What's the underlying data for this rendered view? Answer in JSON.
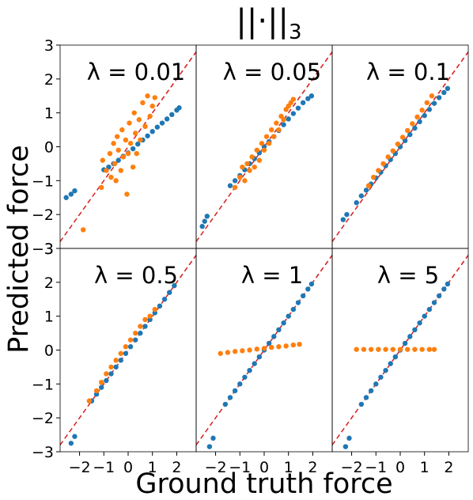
{
  "figure": {
    "title_main": "||·||",
    "title_sub": "3",
    "ylabel": "Predicted force",
    "xlabel": "Ground truth force",
    "y_ticks": [
      "3",
      "2",
      "1",
      "0",
      "−1",
      "−2",
      "−3"
    ],
    "x_ticks": [
      "−2",
      "−1",
      "0",
      "1",
      "2"
    ]
  },
  "colors": {
    "blue": "#1f77b4",
    "orange": "#ff7f0e",
    "diagonal": "#d62728"
  },
  "chart_data": [
    {
      "type": "scatter",
      "panel_label": "λ = 0.01",
      "xlim": [
        -2.8,
        2.8
      ],
      "ylim": [
        -3,
        3
      ],
      "blue_pattern": "identity",
      "orange_pattern": "wide_scatter",
      "series": [
        {
          "values": [
            [
              -2.55,
              -1.5
            ],
            [
              -2.35,
              -1.4
            ],
            [
              -2.2,
              -1.3
            ],
            [
              -1.0,
              -0.68
            ],
            [
              -0.8,
              -0.6
            ],
            [
              -0.6,
              -0.5
            ],
            [
              -0.4,
              -0.4
            ],
            [
              -0.2,
              -0.28
            ],
            [
              0.0,
              -0.18
            ],
            [
              0.2,
              -0.06
            ],
            [
              0.4,
              0.08
            ],
            [
              0.6,
              0.2
            ],
            [
              0.8,
              0.32
            ],
            [
              1.0,
              0.45
            ],
            [
              1.2,
              0.58
            ],
            [
              1.4,
              0.7
            ],
            [
              1.6,
              0.82
            ],
            [
              1.8,
              0.95
            ],
            [
              2.0,
              1.08
            ],
            [
              2.1,
              1.15
            ]
          ]
        },
        {
          "values": [
            [
              -1.1,
              -1.2
            ],
            [
              -1.05,
              -0.4
            ],
            [
              -0.9,
              -0.7
            ],
            [
              -0.75,
              -0.2
            ],
            [
              -0.7,
              -0.9
            ],
            [
              -0.6,
              0.1
            ],
            [
              -0.55,
              -0.5
            ],
            [
              -0.5,
              -1.0
            ],
            [
              -0.45,
              0.3
            ],
            [
              -0.4,
              -0.1
            ],
            [
              -0.3,
              -0.7
            ],
            [
              -0.25,
              0.5
            ],
            [
              -0.2,
              -0.3
            ],
            [
              -0.1,
              0.2
            ],
            [
              -0.05,
              -1.4
            ],
            [
              0.0,
              -0.2
            ],
            [
              0.05,
              0.7
            ],
            [
              0.1,
              0.1
            ],
            [
              0.2,
              -0.6
            ],
            [
              0.25,
              1.0
            ],
            [
              0.3,
              0.4
            ],
            [
              0.35,
              -0.2
            ],
            [
              0.45,
              0.8
            ],
            [
              0.5,
              0.2
            ],
            [
              0.6,
              1.3
            ],
            [
              0.7,
              0.6
            ],
            [
              0.8,
              1.5
            ],
            [
              0.9,
              0.9
            ],
            [
              1.0,
              1.2
            ],
            [
              1.1,
              1.45
            ],
            [
              -1.85,
              -2.45
            ]
          ]
        }
      ]
    },
    {
      "type": "scatter",
      "panel_label": "λ = 0.05",
      "xlim": [
        -2.8,
        2.8
      ],
      "ylim": [
        -3,
        3
      ],
      "blue_pattern": "identity",
      "orange_pattern": "moderate_scatter",
      "series": [
        {
          "values": [
            [
              -2.55,
              -2.35
            ],
            [
              -2.45,
              -2.2
            ],
            [
              -2.35,
              -2.05
            ],
            [
              -1.4,
              -1.15
            ],
            [
              -1.2,
              -1.0
            ],
            [
              -1.0,
              -0.85
            ],
            [
              -0.8,
              -0.68
            ],
            [
              -0.6,
              -0.5
            ],
            [
              -0.4,
              -0.35
            ],
            [
              -0.2,
              -0.18
            ],
            [
              0.0,
              0.0
            ],
            [
              0.2,
              0.15
            ],
            [
              0.4,
              0.3
            ],
            [
              0.6,
              0.48
            ],
            [
              0.8,
              0.65
            ],
            [
              1.0,
              0.82
            ],
            [
              1.2,
              0.98
            ],
            [
              1.4,
              1.14
            ],
            [
              1.6,
              1.3
            ],
            [
              1.8,
              1.42
            ],
            [
              1.95,
              1.5
            ]
          ]
        },
        {
          "values": [
            [
              -1.2,
              -1.2
            ],
            [
              -1.0,
              -0.9
            ],
            [
              -0.9,
              -0.6
            ],
            [
              -0.8,
              -1.0
            ],
            [
              -0.7,
              -0.5
            ],
            [
              -0.6,
              -0.7
            ],
            [
              -0.5,
              -0.3
            ],
            [
              -0.4,
              -0.6
            ],
            [
              -0.3,
              -0.1
            ],
            [
              -0.2,
              -0.4
            ],
            [
              -0.1,
              0.1
            ],
            [
              0.0,
              -0.1
            ],
            [
              0.1,
              0.3
            ],
            [
              0.2,
              0.1
            ],
            [
              0.3,
              0.5
            ],
            [
              0.4,
              0.3
            ],
            [
              0.5,
              0.7
            ],
            [
              0.6,
              0.5
            ],
            [
              0.7,
              0.9
            ],
            [
              0.8,
              0.8
            ],
            [
              0.9,
              1.1
            ],
            [
              1.0,
              1.2
            ],
            [
              1.1,
              1.3
            ],
            [
              1.2,
              1.4
            ]
          ]
        }
      ]
    },
    {
      "type": "scatter",
      "panel_label": "λ = 0.1",
      "xlim": [
        -2.8,
        2.8
      ],
      "ylim": [
        -3,
        3
      ],
      "blue_pattern": "identity",
      "orange_pattern": "tight",
      "series": [
        {
          "values": [
            [
              -2.35,
              -2.15
            ],
            [
              -2.2,
              -2.0
            ],
            [
              -1.8,
              -1.65
            ],
            [
              -1.6,
              -1.45
            ],
            [
              -1.4,
              -1.28
            ],
            [
              -1.2,
              -1.1
            ],
            [
              -1.0,
              -0.92
            ],
            [
              -0.8,
              -0.75
            ],
            [
              -0.6,
              -0.56
            ],
            [
              -0.4,
              -0.38
            ],
            [
              -0.2,
              -0.2
            ],
            [
              0.0,
              0.0
            ],
            [
              0.2,
              0.18
            ],
            [
              0.4,
              0.36
            ],
            [
              0.6,
              0.55
            ],
            [
              0.8,
              0.74
            ],
            [
              1.0,
              0.92
            ],
            [
              1.2,
              1.1
            ],
            [
              1.4,
              1.28
            ],
            [
              1.6,
              1.45
            ],
            [
              1.8,
              1.6
            ],
            [
              1.95,
              1.72
            ]
          ]
        },
        {
          "values": [
            [
              -1.3,
              -1.15
            ],
            [
              -1.1,
              -0.9
            ],
            [
              -0.9,
              -0.7
            ],
            [
              -0.7,
              -0.5
            ],
            [
              -0.5,
              -0.3
            ],
            [
              -0.3,
              -0.12
            ],
            [
              -0.1,
              0.08
            ],
            [
              0.1,
              0.28
            ],
            [
              0.3,
              0.48
            ],
            [
              0.5,
              0.68
            ],
            [
              0.7,
              0.88
            ],
            [
              0.9,
              1.08
            ],
            [
              1.1,
              1.3
            ],
            [
              1.3,
              1.5
            ]
          ]
        }
      ]
    },
    {
      "type": "scatter",
      "panel_label": "λ = 0.5",
      "xlim": [
        -2.8,
        2.8
      ],
      "ylim": [
        -3,
        3
      ],
      "blue_pattern": "identity",
      "orange_pattern": "tight",
      "series": [
        {
          "values": [
            [
              -2.35,
              -2.75
            ],
            [
              -2.2,
              -2.55
            ],
            [
              -1.5,
              -1.5
            ],
            [
              -1.3,
              -1.3
            ],
            [
              -1.1,
              -1.1
            ],
            [
              -0.9,
              -0.9
            ],
            [
              -0.7,
              -0.7
            ],
            [
              -0.5,
              -0.5
            ],
            [
              -0.3,
              -0.3
            ],
            [
              -0.1,
              -0.1
            ],
            [
              0.1,
              0.1
            ],
            [
              0.3,
              0.3
            ],
            [
              0.5,
              0.5
            ],
            [
              0.7,
              0.7
            ],
            [
              0.9,
              0.9
            ],
            [
              1.1,
              1.1
            ],
            [
              1.3,
              1.3
            ],
            [
              1.5,
              1.5
            ],
            [
              1.7,
              1.7
            ],
            [
              1.9,
              1.9
            ]
          ]
        },
        {
          "values": [
            [
              -1.6,
              -1.5
            ],
            [
              -1.3,
              -1.2
            ],
            [
              -1.1,
              -0.95
            ],
            [
              -0.9,
              -0.7
            ],
            [
              -0.7,
              -0.5
            ],
            [
              -0.5,
              -0.3
            ],
            [
              -0.3,
              -0.1
            ],
            [
              -0.1,
              0.1
            ],
            [
              0.1,
              0.3
            ],
            [
              0.3,
              0.5
            ],
            [
              0.5,
              0.7
            ],
            [
              0.7,
              0.9
            ],
            [
              0.9,
              1.0
            ],
            [
              1.1,
              1.2
            ]
          ]
        }
      ]
    },
    {
      "type": "scatter",
      "panel_label": "λ = 1",
      "xlim": [
        -2.8,
        2.8
      ],
      "ylim": [
        -3,
        3
      ],
      "blue_pattern": "identity",
      "orange_pattern": "flat",
      "series": [
        {
          "values": [
            [
              -2.25,
              -2.85
            ],
            [
              -2.1,
              -2.6
            ],
            [
              -1.6,
              -1.6
            ],
            [
              -1.4,
              -1.4
            ],
            [
              -1.2,
              -1.2
            ],
            [
              -1.0,
              -1.0
            ],
            [
              -0.8,
              -0.8
            ],
            [
              -0.6,
              -0.6
            ],
            [
              -0.4,
              -0.4
            ],
            [
              -0.2,
              -0.2
            ],
            [
              0.0,
              0.0
            ],
            [
              0.2,
              0.2
            ],
            [
              0.4,
              0.4
            ],
            [
              0.6,
              0.6
            ],
            [
              0.8,
              0.8
            ],
            [
              1.0,
              1.0
            ],
            [
              1.2,
              1.2
            ],
            [
              1.4,
              1.4
            ],
            [
              1.6,
              1.6
            ],
            [
              1.8,
              1.8
            ],
            [
              1.95,
              1.95
            ]
          ]
        },
        {
          "values": [
            [
              -1.8,
              -0.1
            ],
            [
              -1.5,
              -0.07
            ],
            [
              -1.2,
              -0.04
            ],
            [
              -0.9,
              -0.02
            ],
            [
              -0.6,
              0.0
            ],
            [
              -0.3,
              0.03
            ],
            [
              0.0,
              0.05
            ],
            [
              0.3,
              0.08
            ],
            [
              0.6,
              0.1
            ],
            [
              0.9,
              0.12
            ],
            [
              1.2,
              0.15
            ],
            [
              1.45,
              0.17
            ]
          ]
        }
      ]
    },
    {
      "type": "scatter",
      "panel_label": "λ = 5",
      "xlim": [
        -2.8,
        2.8
      ],
      "ylim": [
        -3,
        3
      ],
      "blue_pattern": "identity",
      "orange_pattern": "flat",
      "series": [
        {
          "values": [
            [
              -2.25,
              -2.85
            ],
            [
              -2.1,
              -2.6
            ],
            [
              -1.6,
              -1.6
            ],
            [
              -1.4,
              -1.4
            ],
            [
              -1.2,
              -1.2
            ],
            [
              -1.0,
              -1.0
            ],
            [
              -0.8,
              -0.8
            ],
            [
              -0.6,
              -0.6
            ],
            [
              -0.4,
              -0.4
            ],
            [
              -0.2,
              -0.2
            ],
            [
              0.0,
              0.0
            ],
            [
              0.2,
              0.2
            ],
            [
              0.4,
              0.4
            ],
            [
              0.6,
              0.6
            ],
            [
              0.8,
              0.8
            ],
            [
              1.0,
              1.0
            ],
            [
              1.2,
              1.2
            ],
            [
              1.4,
              1.4
            ],
            [
              1.6,
              1.6
            ],
            [
              1.8,
              1.8
            ],
            [
              1.95,
              1.95
            ]
          ]
        },
        {
          "values": [
            [
              -1.8,
              0.02
            ],
            [
              -1.5,
              0.02
            ],
            [
              -1.2,
              0.02
            ],
            [
              -0.9,
              0.02
            ],
            [
              -0.6,
              0.02
            ],
            [
              -0.3,
              0.02
            ],
            [
              0.0,
              0.02
            ],
            [
              0.3,
              0.02
            ],
            [
              0.6,
              0.02
            ],
            [
              0.9,
              0.02
            ],
            [
              1.2,
              0.02
            ],
            [
              1.4,
              0.02
            ]
          ]
        }
      ]
    }
  ]
}
